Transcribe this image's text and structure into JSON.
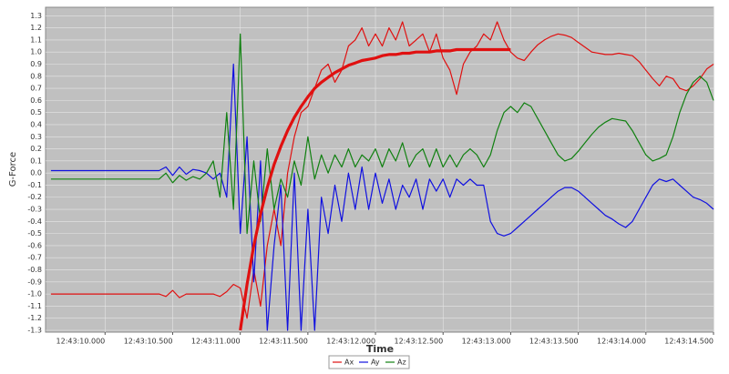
{
  "chart_data": {
    "type": "line",
    "y_label": "G-Force",
    "x_label": "Time",
    "x": [
      9.6,
      9.65,
      9.7,
      9.75,
      9.8,
      9.85,
      9.9,
      9.95,
      10.0,
      10.05,
      10.1,
      10.15,
      10.2,
      10.25,
      10.3,
      10.35,
      10.4,
      10.45,
      10.5,
      10.55,
      10.6,
      10.65,
      10.7,
      10.75,
      10.8,
      10.85,
      10.9,
      10.95,
      11.0,
      11.05,
      11.1,
      11.15,
      11.2,
      11.25,
      11.3,
      11.35,
      11.4,
      11.45,
      11.5,
      11.55,
      11.6,
      11.65,
      11.7,
      11.75,
      11.8,
      11.85,
      11.9,
      11.95,
      12.0,
      12.05,
      12.1,
      12.15,
      12.2,
      12.25,
      12.3,
      12.35,
      12.4,
      12.45,
      12.5,
      12.55,
      12.6,
      12.65,
      12.7,
      12.75,
      12.8,
      12.85,
      12.9,
      12.95,
      13.0,
      13.05,
      13.1,
      13.15,
      13.2,
      13.25,
      13.3,
      13.35,
      13.4,
      13.45,
      13.5,
      13.55,
      13.6,
      13.65,
      13.7,
      13.75,
      13.8,
      13.85,
      13.9,
      13.95,
      14.0,
      14.05,
      14.1,
      14.15,
      14.2,
      14.25,
      14.3,
      14.35,
      14.4,
      14.45,
      14.5
    ],
    "series": [
      {
        "name": "Ax",
        "color": "#e01010",
        "width": 1.2,
        "values": [
          -1,
          -1,
          -1,
          -1,
          -1,
          -1,
          -1,
          -1,
          -1,
          -1,
          -1,
          -1,
          -1,
          -1,
          -1,
          -1,
          -1,
          -1.02,
          -0.97,
          -1.03,
          -1,
          -1,
          -1,
          -1,
          -1,
          -1.02,
          -0.98,
          -0.92,
          -0.95,
          -1.2,
          -0.8,
          -1.1,
          -0.6,
          -0.3,
          -0.6,
          0.0,
          0.3,
          0.5,
          0.55,
          0.7,
          0.85,
          0.9,
          0.75,
          0.85,
          1.05,
          1.1,
          1.2,
          1.05,
          1.15,
          1.05,
          1.2,
          1.1,
          1.25,
          1.05,
          1.1,
          1.15,
          1.0,
          1.15,
          0.95,
          0.85,
          0.65,
          0.9,
          1.0,
          1.05,
          1.15,
          1.1,
          1.25,
          1.1,
          1.0,
          0.95,
          0.93,
          1.0,
          1.06,
          1.1,
          1.13,
          1.15,
          1.14,
          1.12,
          1.08,
          1.04,
          1.0,
          0.99,
          0.98,
          0.98,
          0.99,
          0.98,
          0.97,
          0.92,
          0.85,
          0.78,
          0.72,
          0.8,
          0.78,
          0.7,
          0.68,
          0.72,
          0.78,
          0.86,
          0.9
        ]
      },
      {
        "name": "Ay",
        "color": "#1010e0",
        "width": 1.2,
        "values": [
          0.02,
          0.02,
          0.02,
          0.02,
          0.02,
          0.02,
          0.02,
          0.02,
          0.02,
          0.02,
          0.02,
          0.02,
          0.02,
          0.02,
          0.02,
          0.02,
          0.02,
          0.05,
          -0.02,
          0.05,
          -0.01,
          0.03,
          0.02,
          0.0,
          -0.05,
          0.0,
          -0.2,
          0.9,
          -0.5,
          0.3,
          -0.9,
          0.1,
          -1.3,
          -0.6,
          -0.1,
          -1.3,
          0.0,
          -1.3,
          -0.3,
          -1.3,
          -0.2,
          -0.5,
          -0.1,
          -0.4,
          0.0,
          -0.3,
          0.05,
          -0.3,
          0.0,
          -0.25,
          -0.05,
          -0.3,
          -0.1,
          -0.2,
          -0.05,
          -0.3,
          -0.05,
          -0.15,
          -0.05,
          -0.2,
          -0.05,
          -0.1,
          -0.05,
          -0.1,
          -0.1,
          -0.4,
          -0.5,
          -0.52,
          -0.5,
          -0.45,
          -0.4,
          -0.35,
          -0.3,
          -0.25,
          -0.2,
          -0.15,
          -0.12,
          -0.12,
          -0.15,
          -0.2,
          -0.25,
          -0.3,
          -0.35,
          -0.38,
          -0.42,
          -0.45,
          -0.4,
          -0.3,
          -0.2,
          -0.1,
          -0.05,
          -0.07,
          -0.05,
          -0.1,
          -0.15,
          -0.2,
          -0.22,
          -0.25,
          -0.3
        ]
      },
      {
        "name": "Az",
        "color": "#108010",
        "width": 1.2,
        "values": [
          -0.05,
          -0.05,
          -0.05,
          -0.05,
          -0.05,
          -0.05,
          -0.05,
          -0.05,
          -0.05,
          -0.05,
          -0.05,
          -0.05,
          -0.05,
          -0.05,
          -0.05,
          -0.05,
          -0.05,
          0.0,
          -0.08,
          -0.02,
          -0.06,
          -0.03,
          -0.05,
          0.0,
          0.1,
          -0.2,
          0.5,
          -0.3,
          1.15,
          -0.5,
          0.1,
          -0.4,
          0.2,
          -0.3,
          -0.05,
          -0.2,
          0.1,
          -0.1,
          0.3,
          -0.05,
          0.15,
          0.0,
          0.15,
          0.05,
          0.2,
          0.05,
          0.15,
          0.1,
          0.2,
          0.05,
          0.2,
          0.1,
          0.25,
          0.05,
          0.15,
          0.2,
          0.05,
          0.2,
          0.05,
          0.15,
          0.05,
          0.15,
          0.2,
          0.15,
          0.05,
          0.15,
          0.35,
          0.5,
          0.55,
          0.5,
          0.58,
          0.55,
          0.45,
          0.35,
          0.25,
          0.15,
          0.1,
          0.12,
          0.18,
          0.25,
          0.32,
          0.38,
          0.42,
          0.45,
          0.44,
          0.43,
          0.35,
          0.25,
          0.15,
          0.1,
          0.12,
          0.15,
          0.3,
          0.5,
          0.65,
          0.75,
          0.8,
          0.75,
          0.6
        ]
      },
      {
        "color": "#e01010",
        "width": 3.2,
        "values": [
          null,
          null,
          null,
          null,
          null,
          null,
          null,
          null,
          null,
          null,
          null,
          null,
          null,
          null,
          null,
          null,
          null,
          null,
          null,
          null,
          null,
          null,
          null,
          null,
          null,
          null,
          null,
          null,
          -1.3,
          -0.92,
          -0.6,
          -0.34,
          -0.12,
          0.07,
          0.22,
          0.35,
          0.46,
          0.55,
          0.63,
          0.7,
          0.75,
          0.79,
          0.83,
          0.86,
          0.89,
          0.91,
          0.93,
          0.94,
          0.95,
          0.97,
          0.98,
          0.98,
          0.99,
          0.99,
          1.0,
          1.0,
          1.0,
          1.01,
          1.01,
          1.01,
          1.02,
          1.02,
          1.02,
          1.02,
          1.02,
          1.02,
          1.02,
          1.02,
          1.02,
          null,
          null,
          null,
          null,
          null,
          null,
          null,
          null,
          null,
          null,
          null,
          null,
          null,
          null,
          null,
          null,
          null,
          null,
          null,
          null,
          null,
          null,
          null,
          null,
          null,
          null,
          null,
          null,
          null,
          null
        ]
      }
    ],
    "xlim": [
      9.56,
      14.5
    ],
    "xticks": [
      {
        "value": 10.0,
        "label": "12:43:10.000"
      },
      {
        "value": 10.5,
        "label": "12:43:10.500"
      },
      {
        "value": 11.0,
        "label": "12:43:11.000"
      },
      {
        "value": 11.5,
        "label": "12:43:11.500"
      },
      {
        "value": 12.0,
        "label": "12:43:12.000"
      },
      {
        "value": 12.5,
        "label": "12:43:12.500"
      },
      {
        "value": 13.0,
        "label": "12:43:13.000"
      },
      {
        "value": 13.5,
        "label": "12:43:13.500"
      },
      {
        "value": 14.0,
        "label": "12:43:14.000"
      },
      {
        "value": 14.5,
        "label": "12:43:14.500"
      }
    ],
    "ylim": [
      -1.315,
      1.37
    ],
    "yticks": [
      -1.3,
      -1.2,
      -1.1,
      {
        "value": -1.0,
        "label": "-1.0"
      },
      -0.9,
      -0.8,
      -0.7,
      -0.6,
      -0.5,
      -0.4,
      -0.3,
      -0.2,
      -0.1,
      {
        "value": 0.0,
        "label": "0.0"
      },
      0.1,
      0.2,
      0.3,
      0.4,
      0.5,
      0.6,
      0.7,
      0.8,
      0.9,
      {
        "value": 1.0,
        "label": "1.0"
      },
      1.1,
      1.2,
      1.3
    ],
    "grid": true,
    "background": "#c0c0c0"
  }
}
